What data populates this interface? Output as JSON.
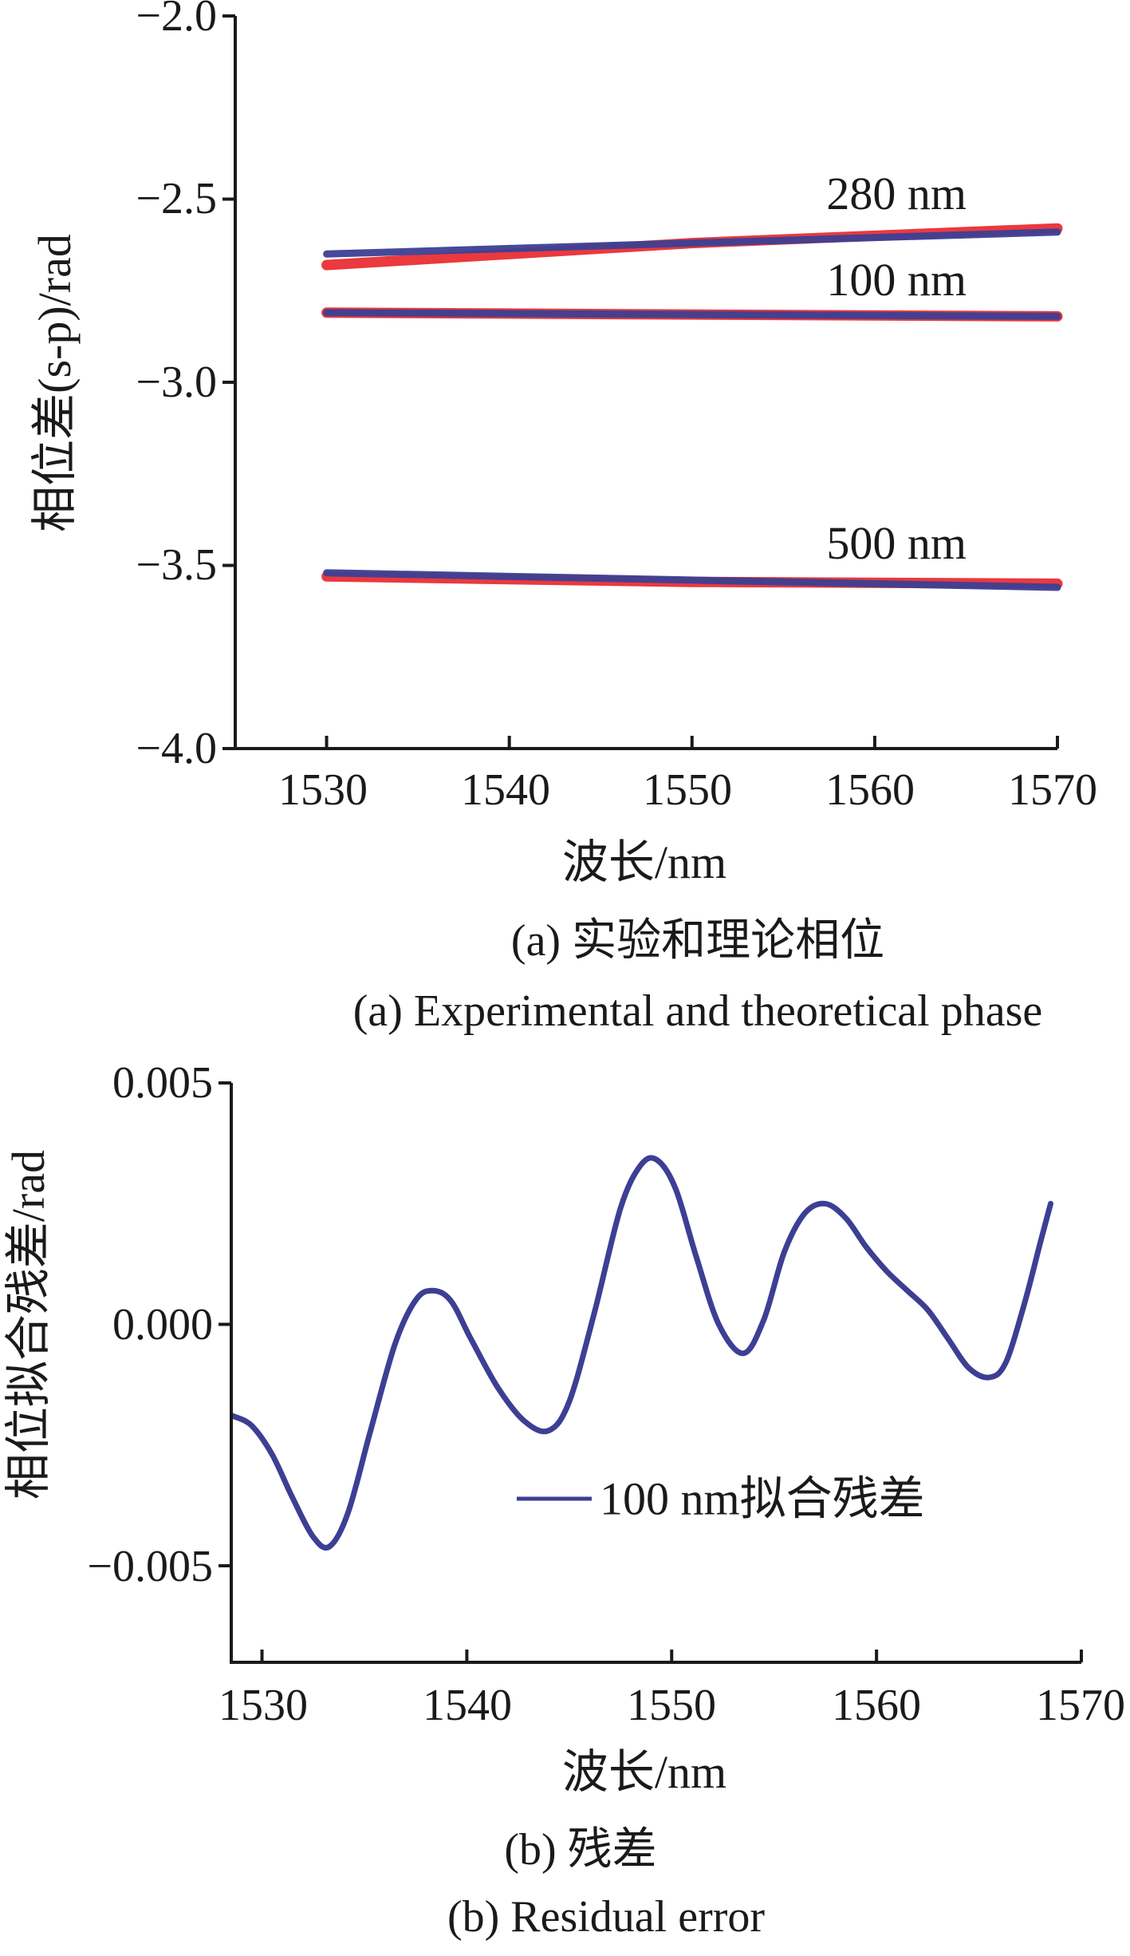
{
  "chart_data": [
    {
      "type": "line",
      "caption_cn": "(a) 实验和理论相位",
      "caption_en": "(a) Experimental and theoretical phase",
      "xlabel": "波长/nm",
      "ylabel": "相位差(s-p)/rad",
      "xlim": [
        1525,
        1570
      ],
      "ylim": [
        -4.0,
        -2.0
      ],
      "xticks": [
        "1530",
        "1540",
        "1550",
        "1560",
        "1570"
      ],
      "yticks": [
        "−2.0",
        "−2.5",
        "−3.0",
        "−3.5",
        "−4.0"
      ],
      "annotations": [
        "280 nm",
        "100 nm",
        "500 nm"
      ],
      "series": [
        {
          "group": "280 nm",
          "role": "experimental",
          "color": "#e8242a",
          "x": [
            1530,
            1550,
            1570
          ],
          "y": [
            -2.68,
            -2.62,
            -2.58
          ]
        },
        {
          "group": "280 nm",
          "role": "theoretical",
          "color": "#3c3f93",
          "x": [
            1530,
            1550,
            1570
          ],
          "y": [
            -2.65,
            -2.62,
            -2.59
          ]
        },
        {
          "group": "100 nm",
          "role": "experimental",
          "color": "#e8242a",
          "x": [
            1530,
            1550,
            1570
          ],
          "y": [
            -2.81,
            -2.815,
            -2.82
          ]
        },
        {
          "group": "100 nm",
          "role": "theoretical",
          "color": "#3c3f93",
          "x": [
            1530,
            1550,
            1570
          ],
          "y": [
            -2.81,
            -2.815,
            -2.82
          ]
        },
        {
          "group": "500 nm",
          "role": "experimental",
          "color": "#e8242a",
          "x": [
            1530,
            1550,
            1570
          ],
          "y": [
            -3.53,
            -3.545,
            -3.55
          ]
        },
        {
          "group": "500 nm",
          "role": "theoretical",
          "color": "#3c3f93",
          "x": [
            1530,
            1550,
            1570
          ],
          "y": [
            -3.52,
            -3.54,
            -3.56
          ]
        }
      ]
    },
    {
      "type": "line",
      "caption_cn": "(b) 残差",
      "caption_en": "(b) Residual error",
      "xlabel": "波长/nm",
      "ylabel": "相位拟合残差/rad",
      "xlim": [
        1528.5,
        1570
      ],
      "ylim": [
        -0.007,
        0.005
      ],
      "xticks": [
        "1530",
        "1540",
        "1550",
        "1560",
        "1570"
      ],
      "yticks": [
        "0.005",
        "0.000",
        "−0.005"
      ],
      "legend": "100 nm拟合残差",
      "series": [
        {
          "name": "100 nm拟合残差",
          "color": "#3c3f93",
          "x": [
            1528.6,
            1529.5,
            1530.5,
            1531.5,
            1532.5,
            1533.3,
            1534.2,
            1535.3,
            1536.5,
            1537.5,
            1538.3,
            1539.2,
            1540.2,
            1541.5,
            1542.8,
            1544.0,
            1545.0,
            1546.2,
            1547.5,
            1548.5,
            1549.3,
            1550.2,
            1551.2,
            1552.3,
            1553.5,
            1554.5,
            1555.5,
            1556.5,
            1557.5,
            1558.5,
            1559.5,
            1560.5,
            1561.5,
            1562.5,
            1563.5,
            1564.5,
            1565.5,
            1566.3,
            1567.2,
            1568.0,
            1568.5
          ],
          "y": [
            -0.0019,
            -0.0021,
            -0.0027,
            -0.0036,
            -0.0044,
            -0.0046,
            -0.0039,
            -0.0022,
            -0.0004,
            0.0005,
            0.0007,
            0.0005,
            -0.0003,
            -0.0013,
            -0.002,
            -0.0022,
            -0.0016,
            0.0002,
            0.0024,
            0.0033,
            0.0034,
            0.0028,
            0.0014,
            0.0,
            -0.0006,
            0.0001,
            0.0015,
            0.0023,
            0.0025,
            0.0022,
            0.0016,
            0.0011,
            0.0007,
            0.0003,
            -0.0003,
            -0.0009,
            -0.0011,
            -0.0008,
            0.0004,
            0.0017,
            0.0025
          ]
        }
      ]
    }
  ]
}
